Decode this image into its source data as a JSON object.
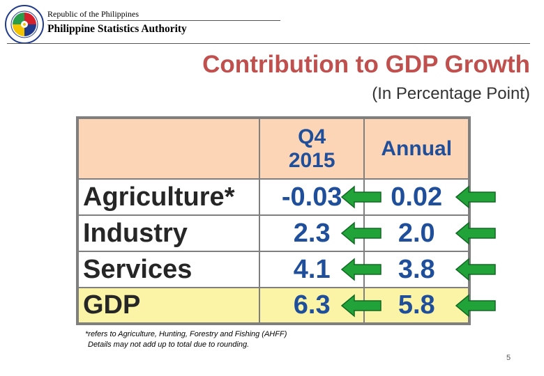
{
  "header": {
    "republic": "Republic of the Philippines",
    "agency": "Philippine Statistics Authority"
  },
  "title": "Contribution to GDP Growth",
  "subtitle": "(In Percentage Point)",
  "table": {
    "columns": [
      "Q4 2015",
      "Annual"
    ],
    "col1_line1": "Q4",
    "col1_line2": "2015",
    "col2": "Annual",
    "rows": [
      {
        "label": "Agriculture*",
        "q4_2015": "-0.03",
        "annual": "0.02"
      },
      {
        "label": "Industry",
        "q4_2015": "2.3",
        "annual": "2.0"
      },
      {
        "label": "Services",
        "q4_2015": "4.1",
        "annual": "3.8"
      },
      {
        "label": "GDP",
        "q4_2015": "6.3",
        "annual": "5.8"
      }
    ]
  },
  "notes": {
    "line1": "*refers to Agriculture, Hunting, Forestry and Fishing (AHFF)",
    "line2": "Details may not add up to total due to rounding."
  },
  "page_number": "5",
  "colors": {
    "title": "#c0504d",
    "header_bg": "#fbd5b5",
    "gdp_row_bg": "#fbf3a6",
    "value_text": "#1f4e9a",
    "arrow_fill": "#22a33a"
  }
}
